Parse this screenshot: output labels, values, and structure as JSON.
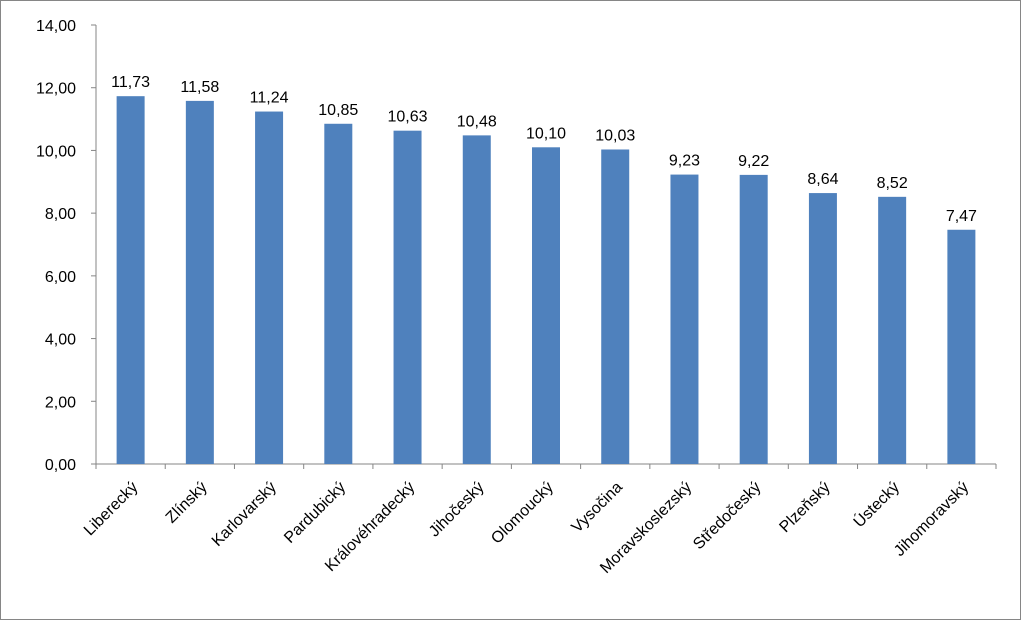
{
  "chart_data": {
    "type": "bar",
    "title": "",
    "xlabel": "",
    "ylabel": "",
    "categories": [
      "Liberecký",
      "Zlínský",
      "Karlovarský",
      "Pardubický",
      "Královéhradecký",
      "Jihočeský",
      "Olomoucký",
      "Vysočina",
      "Moravskoslezský",
      "Středočeský",
      "Plzeňský",
      "Ústecký",
      "Jihomoravský"
    ],
    "values": [
      11.73,
      11.58,
      11.24,
      10.85,
      10.63,
      10.48,
      10.1,
      10.03,
      9.23,
      9.22,
      8.64,
      8.52,
      7.47
    ],
    "value_labels": [
      "11,73",
      "11,58",
      "11,24",
      "10,85",
      "10,63",
      "10,48",
      "10,10",
      "10,03",
      "9,23",
      "9,22",
      "8,64",
      "8,52",
      "7,47"
    ],
    "ylim": [
      0,
      14
    ],
    "yticks": [
      0,
      2,
      4,
      6,
      8,
      10,
      12,
      14
    ],
    "ytick_labels": [
      "0,00",
      "2,00",
      "4,00",
      "6,00",
      "8,00",
      "10,00",
      "12,00",
      "14,00"
    ],
    "grid": false,
    "legend": "none",
    "bar_color": "#4f81bd"
  }
}
